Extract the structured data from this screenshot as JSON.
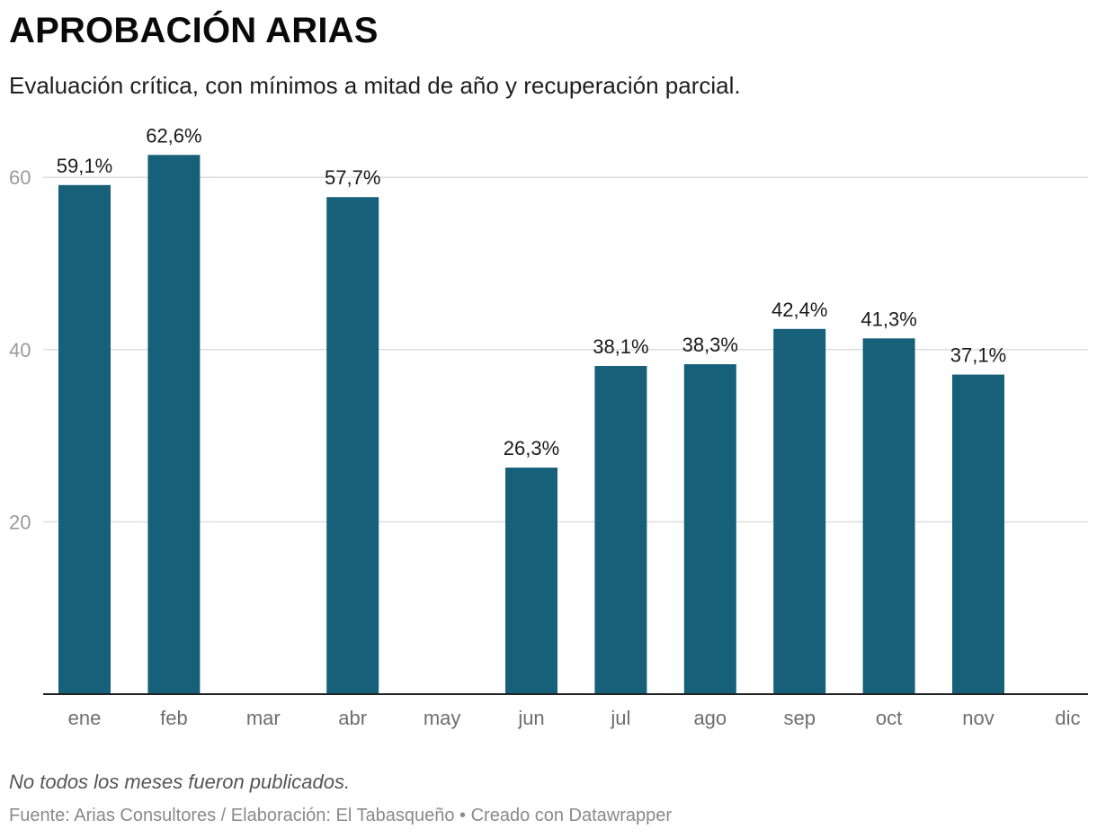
{
  "header": {
    "title": "APROBACIÓN ARIAS",
    "subtitle": "Evaluación crítica, con mínimos a mitad de año y recuperación parcial."
  },
  "footer": {
    "note": "No todos los meses fueron publicados.",
    "source": "Fuente: Arias Consultores / Elaboración: El Tabasqueño • Creado con Datawrapper"
  },
  "colors": {
    "bar": "#16607a",
    "grid": "#dedede",
    "axis": "#222222",
    "tick_label": "#9a9a9a",
    "category_label": "#6e6e6e",
    "value_label": "#1a1a1a"
  },
  "chart_data": {
    "type": "bar",
    "categories": [
      "ene",
      "feb",
      "mar",
      "abr",
      "may",
      "jun",
      "jul",
      "ago",
      "sep",
      "oct",
      "nov",
      "dic"
    ],
    "values": [
      59.1,
      62.6,
      null,
      57.7,
      null,
      26.3,
      38.1,
      38.3,
      42.4,
      41.3,
      37.1,
      null
    ],
    "value_labels": [
      "59,1%",
      "62,6%",
      "",
      "57,7%",
      "",
      "26,3%",
      "38,1%",
      "38,3%",
      "42,4%",
      "41,3%",
      "37,1%",
      ""
    ],
    "yticks": [
      20,
      40,
      60
    ],
    "ylim": [
      0,
      65
    ],
    "grid": true,
    "legend": "none"
  }
}
